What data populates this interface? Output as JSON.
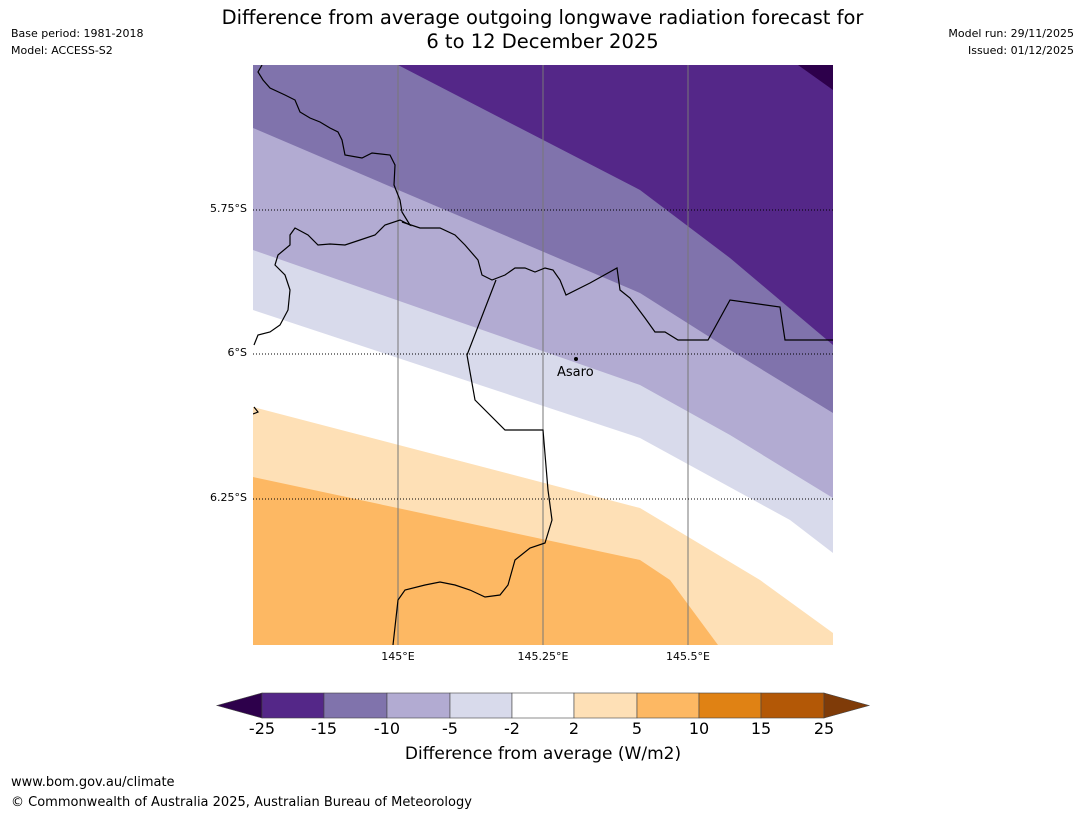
{
  "title": {
    "line1": "Difference from average outgoing longwave radiation forecast for",
    "line2": "6 to 12 December 2025"
  },
  "meta_left": {
    "base_period": "Base period: 1981-2018",
    "model": "Model: ACCESS-S2"
  },
  "meta_right": {
    "model_run": "Model run: 29/11/2025",
    "issued": "Issued: 01/12/2025"
  },
  "map": {
    "lat_labels": [
      "5.75°S",
      "6°S",
      "6.25°S"
    ],
    "lon_labels": [
      "145°E",
      "145.25°E",
      "145.5°E"
    ],
    "place": {
      "name": "Asaro"
    },
    "region_bounds": {
      "lon_min": 144.75,
      "lon_max": 145.75,
      "lat_north": -5.5,
      "lat_south": -6.5
    }
  },
  "colorbar": {
    "tick_labels": [
      "-25",
      "-15",
      "-10",
      "-5",
      "-2",
      "2",
      "5",
      "10",
      "15",
      "25"
    ],
    "colors": {
      "below_min": "#2d004b",
      "bins": [
        "#542788",
        "#8073ac",
        "#b2abd2",
        "#d8daeb",
        "#ffffff",
        "#fee0b6",
        "#fdb863",
        "#e08214",
        "#b35806"
      ],
      "above_max": "#7f3b08"
    },
    "title": "Difference from average (W/m2)"
  },
  "footer": {
    "url": "www.bom.gov.au/climate",
    "copyright": "© Commonwealth of Australia 2025, Australian Bureau of Meteorology"
  }
}
